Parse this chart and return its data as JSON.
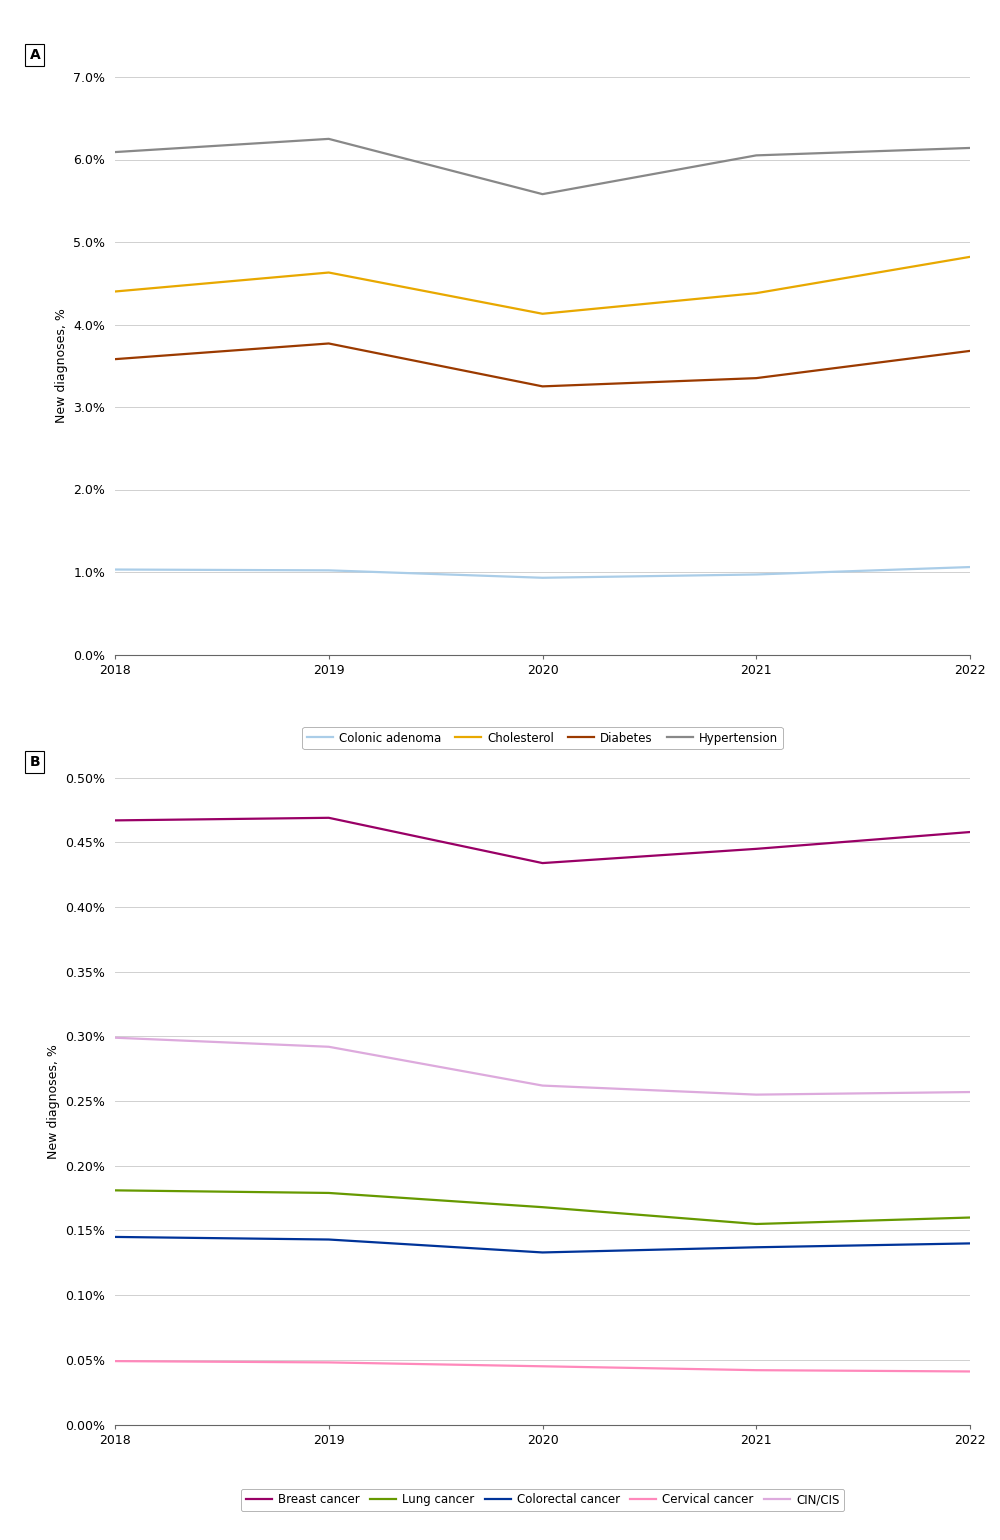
{
  "years": [
    2018,
    2019,
    2020,
    2021,
    2022
  ],
  "panel_A": {
    "Colonic adenoma": [
      1.03,
      1.02,
      0.93,
      0.97,
      1.06
    ],
    "Cholesterol": [
      4.4,
      4.63,
      4.13,
      4.38,
      4.82
    ],
    "Diabetes": [
      3.58,
      3.77,
      3.25,
      3.35,
      3.68
    ],
    "Hypertension": [
      6.09,
      6.25,
      5.58,
      6.05,
      6.14
    ]
  },
  "panel_A_colors": {
    "Colonic adenoma": "#aacde8",
    "Cholesterol": "#e8a800",
    "Diabetes": "#9b3a00",
    "Hypertension": "#888888"
  },
  "panel_A_ylim": [
    0.0,
    7.0
  ],
  "panel_A_yticks": [
    0.0,
    1.0,
    2.0,
    3.0,
    4.0,
    5.0,
    6.0,
    7.0
  ],
  "panel_B": {
    "Breast cancer": [
      0.467,
      0.469,
      0.434,
      0.445,
      0.458
    ],
    "Lung cancer": [
      0.181,
      0.179,
      0.168,
      0.155,
      0.16
    ],
    "Colorectal cancer": [
      0.145,
      0.143,
      0.133,
      0.137,
      0.14
    ],
    "Cervical cancer": [
      0.049,
      0.048,
      0.045,
      0.042,
      0.041
    ],
    "CIN/CIS": [
      0.299,
      0.292,
      0.262,
      0.255,
      0.257
    ]
  },
  "panel_B_colors": {
    "Breast cancer": "#990066",
    "Lung cancer": "#669900",
    "Colorectal cancer": "#003399",
    "Cervical cancer": "#ff88bb",
    "CIN/CIS": "#ddaadd"
  },
  "panel_B_ylim": [
    0.0,
    0.5
  ],
  "panel_B_yticks": [
    0.0,
    0.05,
    0.1,
    0.15,
    0.2,
    0.25,
    0.3,
    0.35,
    0.4,
    0.45,
    0.5
  ],
  "ylabel": "New diagnoses, %",
  "grid_color": "#d0d0d0",
  "tick_fontsize": 9,
  "label_fontsize": 9,
  "legend_fontsize": 8.5,
  "line_width": 1.6
}
